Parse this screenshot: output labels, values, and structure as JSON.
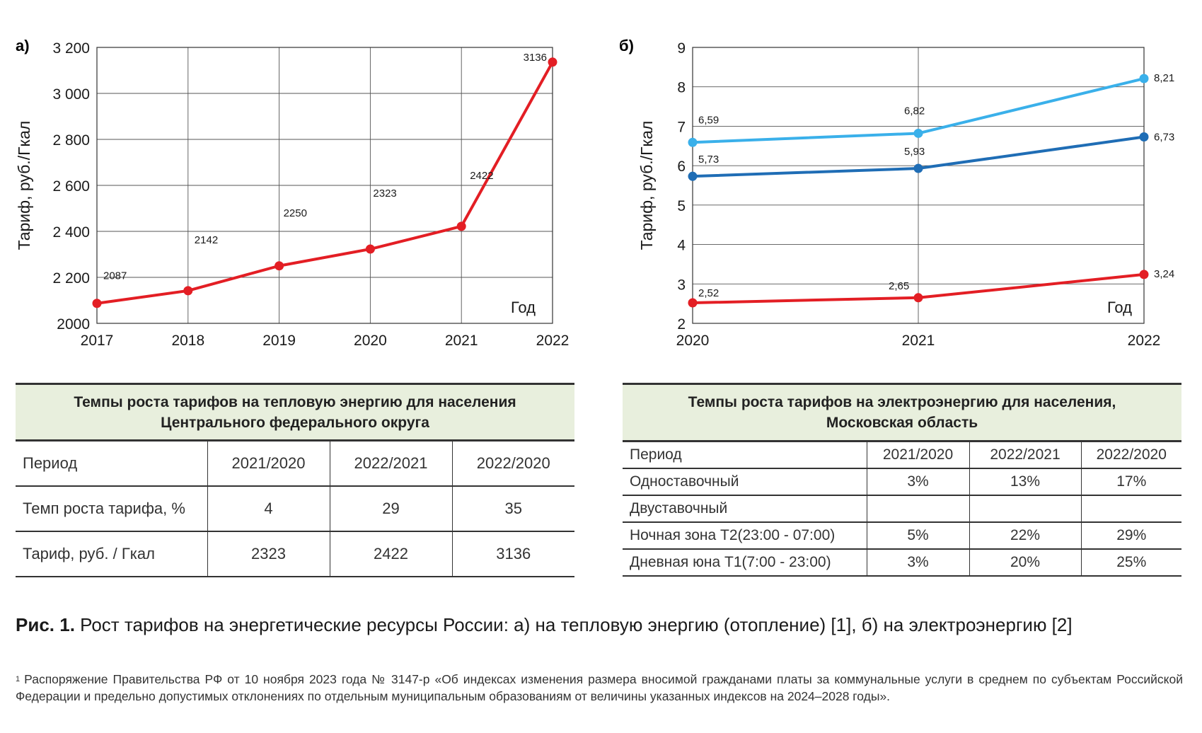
{
  "chart_data": [
    {
      "type": "line",
      "panel_label": "а)",
      "ylabel": "Тариф, руб./Гкал",
      "xlabel": "Год",
      "x": [
        "2017",
        "2018",
        "2019",
        "2020",
        "2021",
        "2022"
      ],
      "ylim": [
        2000,
        3200
      ],
      "yticks": [
        "2000",
        "2 200",
        "2 400",
        "2 600",
        "2 800",
        "3 000",
        "3 200"
      ],
      "ytick_values": [
        2000,
        2200,
        2400,
        2600,
        2800,
        3000,
        3200
      ],
      "grid": true,
      "series": [
        {
          "values": [
            2087,
            2142,
            2250,
            2323,
            2422,
            3136
          ],
          "color": "#e31e24",
          "labels": [
            "2087",
            "2142",
            "2250",
            "2323",
            "2422",
            "3136"
          ]
        }
      ]
    },
    {
      "type": "line",
      "panel_label": "б)",
      "ylabel": "Тариф, руб./Гкал",
      "xlabel": "Год",
      "x": [
        "2020",
        "2021",
        "2022"
      ],
      "ylim": [
        2,
        9
      ],
      "yticks": [
        "2",
        "3",
        "4",
        "5",
        "6",
        "7",
        "8",
        "9"
      ],
      "ytick_values": [
        2,
        3,
        4,
        5,
        6,
        7,
        8,
        9
      ],
      "grid": true,
      "series": [
        {
          "values": [
            6.59,
            6.82,
            8.21
          ],
          "color": "#3ab0ea",
          "labels": [
            "6,59",
            "6,82",
            "8,21"
          ]
        },
        {
          "values": [
            5.73,
            5.93,
            6.73
          ],
          "color": "#1f6db5",
          "labels": [
            "5,73",
            "5,93",
            "6,73"
          ]
        },
        {
          "values": [
            2.52,
            2.65,
            3.24
          ],
          "color": "#e31e24",
          "labels": [
            "2,52",
            "2,65",
            "3,24"
          ]
        }
      ]
    }
  ],
  "table_a": {
    "title_line1": "Темпы роста тарифов на тепловую энергию для населения",
    "title_line2": "Центрального федерального округа",
    "headers": [
      "Период",
      "2021/2020",
      "2022/2021",
      "2022/2020"
    ],
    "rows": [
      [
        "Темп роста тарифа, %",
        "4",
        "29",
        "35"
      ],
      [
        "Тариф, руб. / Гкал",
        "2323",
        "2422",
        "3136"
      ]
    ]
  },
  "table_b": {
    "title_line1": "Темпы роста тарифов на электроэнергию для населения,",
    "title_line2": "Московская область",
    "headers": [
      "Период",
      "2021/2020",
      "2022/2021",
      "2022/2020"
    ],
    "rows": [
      [
        "Одноставочный",
        "3%",
        "13%",
        "17%"
      ],
      [
        "Двуставочный",
        "",
        "",
        ""
      ],
      [
        "Ночная зона Т2(23:00 - 07:00)",
        "5%",
        "22%",
        "29%"
      ],
      [
        "Дневная юна Т1(7:00 - 23:00)",
        "3%",
        "20%",
        "25%"
      ]
    ]
  },
  "caption": {
    "bold": "Рис. 1.",
    "text": " Рост тарифов на энергетические ресурсы России: а) на тепловую энергию (отопление) [1], б) на электроэнергию [2]"
  },
  "footnote": {
    "mark": "1",
    "text": "Распоряжение Правительства РФ от 10 ноября 2023 года № 3147-р «Об индексах изменения размера вносимой гражданами платы за коммунальные услуги в среднем по субъектам Российской Федерации и предельно допустимых отклонениях по отдельным муниципальным образованиям от величины указанных индексов на 2024–2028 годы»."
  }
}
